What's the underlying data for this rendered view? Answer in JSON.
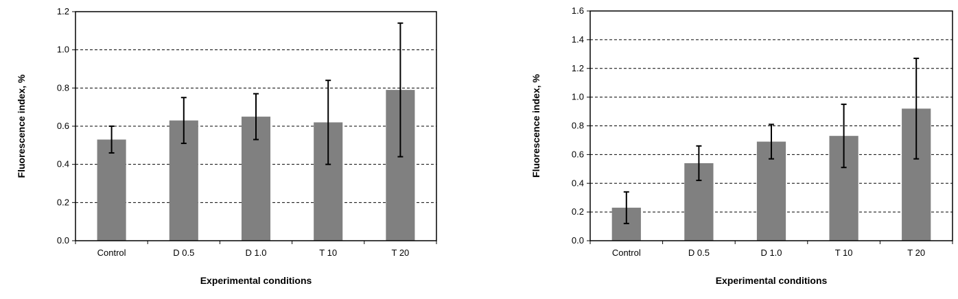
{
  "colors": {
    "bar": "#808080",
    "axis": "#000000",
    "grid": "#000000",
    "error": "#000000"
  },
  "chart_data": [
    {
      "type": "bar",
      "categories": [
        "Control",
        "D 0.5",
        "D 1.0",
        "T 10",
        "T 20"
      ],
      "values": [
        0.53,
        0.63,
        0.65,
        0.62,
        0.79
      ],
      "error_low": [
        0.46,
        0.51,
        0.53,
        0.4,
        0.44
      ],
      "error_high": [
        0.6,
        0.75,
        0.77,
        0.84,
        1.14
      ],
      "xlabel": "Experimental conditions",
      "ylabel": "Fluorescence index, %",
      "ylim": [
        0.0,
        1.2
      ],
      "yticks": [
        "0.0",
        "0.2",
        "0.4",
        "0.6",
        "0.8",
        "1.0",
        "1.2"
      ],
      "grid": "dashed horizontal"
    },
    {
      "type": "bar",
      "categories": [
        "Control",
        "D 0.5",
        "D 1.0",
        "T 10",
        "T 20"
      ],
      "values": [
        0.23,
        0.54,
        0.69,
        0.73,
        0.92
      ],
      "error_low": [
        0.12,
        0.42,
        0.57,
        0.51,
        0.57
      ],
      "error_high": [
        0.34,
        0.66,
        0.81,
        0.95,
        1.27
      ],
      "xlabel": "Experimental conditions",
      "ylabel": "Fluorescence index, %",
      "ylim": [
        0.0,
        1.6
      ],
      "yticks": [
        "0.0",
        "0.2",
        "0.4",
        "0.6",
        "0.8",
        "1.0",
        "1.2",
        "1.4",
        "1.6"
      ],
      "grid": "dashed horizontal"
    }
  ]
}
